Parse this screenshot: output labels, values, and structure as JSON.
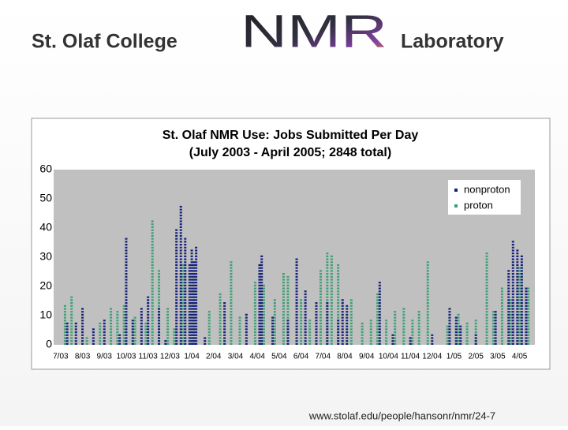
{
  "header": {
    "left": "St. Olaf College",
    "logo": "NMR",
    "right": "Laboratory"
  },
  "footer": "www.stolaf.edu/people/hansonr/nmr/24-7",
  "chart_data": {
    "type": "dotcolumn",
    "title": "St. Olaf NMR Use: Jobs Submitted Per Day",
    "subtitle": "(July 2003 - April 2005; 2848 total)",
    "ylim": [
      0,
      60
    ],
    "yticks": [
      0,
      10,
      20,
      30,
      40,
      50,
      60
    ],
    "xlim": [
      -0.32,
      21.7
    ],
    "xticks": [
      {
        "value": 0,
        "label": "7/03"
      },
      {
        "value": 1,
        "label": "8/03"
      },
      {
        "value": 2,
        "label": "9/03"
      },
      {
        "value": 3,
        "label": "10/03"
      },
      {
        "value": 4,
        "label": "11/03"
      },
      {
        "value": 5,
        "label": "12/03"
      },
      {
        "value": 6,
        "label": "1/04"
      },
      {
        "value": 7,
        "label": "2/04"
      },
      {
        "value": 8,
        "label": "3/04"
      },
      {
        "value": 9,
        "label": "4/04"
      },
      {
        "value": 10,
        "label": "5/04"
      },
      {
        "value": 11,
        "label": "6/04"
      },
      {
        "value": 12,
        "label": "7/04"
      },
      {
        "value": 13,
        "label": "8/04"
      },
      {
        "value": 14,
        "label": "9/04"
      },
      {
        "value": 15,
        "label": "10/04"
      },
      {
        "value": 16,
        "label": "11/04"
      },
      {
        "value": 17,
        "label": "12/04"
      },
      {
        "value": 18,
        "label": "1/05"
      },
      {
        "value": 19,
        "label": "2/05"
      },
      {
        "value": 20,
        "label": "3/05"
      },
      {
        "value": 21,
        "label": "4/05"
      }
    ],
    "grid": false,
    "legend": "upper right",
    "series": [
      {
        "name": "proton",
        "color": "#3aa074",
        "x": [
          0.2,
          0.5,
          1.2,
          1.8,
          2.3,
          2.6,
          2.9,
          3.4,
          3.9,
          4.2,
          4.5,
          4.9,
          5.2,
          5.6,
          6.1,
          6.8,
          7.3,
          7.8,
          8.2,
          8.9,
          9.3,
          9.8,
          10.2,
          10.4,
          11.0,
          11.4,
          11.9,
          12.2,
          12.4,
          12.7,
          13.3,
          13.8,
          14.2,
          14.5,
          14.9,
          15.3,
          15.7,
          16.1,
          16.4,
          16.8,
          17.7,
          18.2,
          18.6,
          19.0,
          19.5,
          19.8,
          20.2,
          20.6,
          21.0,
          21.4
        ],
        "values": [
          14,
          17,
          3,
          8,
          13,
          12,
          14,
          10,
          8,
          43,
          26,
          13,
          6,
          28,
          24,
          12,
          18,
          29,
          10,
          22,
          21,
          16,
          25,
          24,
          16,
          9,
          26,
          32,
          31,
          28,
          16,
          8,
          9,
          18,
          9,
          12,
          13,
          9,
          12,
          29,
          7,
          11,
          8,
          9,
          32,
          12,
          20,
          16,
          27,
          20
        ]
      },
      {
        "name": "nonproton",
        "color": "#14207a",
        "x": [
          0.3,
          0.7,
          1.0,
          1.5,
          2.0,
          2.7,
          3.0,
          3.3,
          3.7,
          4.0,
          4.5,
          4.8,
          5.3,
          5.5,
          5.7,
          5.9,
          6.0,
          6.1,
          6.2,
          6.6,
          7.5,
          8.5,
          9.1,
          9.2,
          9.7,
          10.4,
          10.8,
          11.2,
          11.7,
          12.2,
          12.7,
          12.9,
          13.1,
          14.6,
          15.2,
          16.0,
          17.0,
          17.8,
          18.1,
          18.3,
          19.0,
          19.9,
          20.5,
          20.7,
          20.9,
          21.1,
          21.3
        ],
        "values": [
          8,
          8,
          13,
          6,
          9,
          4,
          37,
          9,
          13,
          17,
          13,
          2,
          40,
          48,
          37,
          28,
          33,
          29,
          34,
          3,
          15,
          11,
          28,
          31,
          10,
          9,
          30,
          19,
          15,
          15,
          9,
          16,
          14,
          22,
          4,
          3,
          4,
          13,
          10,
          7,
          4,
          12,
          26,
          36,
          33,
          31,
          20
        ]
      }
    ]
  }
}
